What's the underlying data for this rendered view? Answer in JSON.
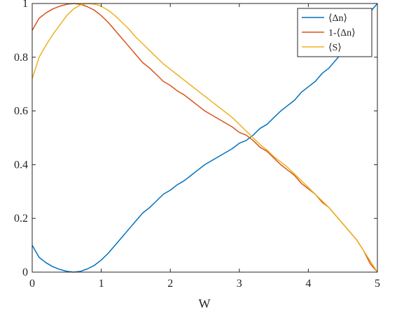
{
  "chart_data": {
    "type": "line",
    "title": "",
    "xlabel": "W",
    "ylabel": "",
    "xlim": [
      0,
      5
    ],
    "ylim": [
      0,
      1
    ],
    "x_ticks": [
      0,
      1,
      2,
      3,
      4,
      5
    ],
    "x_tick_labels": [
      "0",
      "1",
      "2",
      "3",
      "4",
      "5"
    ],
    "y_ticks": [
      0,
      0.2,
      0.4,
      0.6,
      0.8,
      1
    ],
    "y_tick_labels": [
      "0",
      "0.2",
      "0.4",
      "0.6",
      "0.8",
      "1"
    ],
    "grid": false,
    "legend_position": "top-right",
    "x": [
      0,
      0.1,
      0.2,
      0.3,
      0.4,
      0.5,
      0.6,
      0.7,
      0.8,
      0.9,
      1.0,
      1.1,
      1.2,
      1.3,
      1.4,
      1.5,
      1.6,
      1.7,
      1.8,
      1.9,
      2.0,
      2.1,
      2.2,
      2.3,
      2.4,
      2.5,
      2.6,
      2.7,
      2.8,
      2.9,
      3.0,
      3.1,
      3.2,
      3.3,
      3.4,
      3.5,
      3.6,
      3.7,
      3.8,
      3.9,
      4.0,
      4.1,
      4.2,
      4.3,
      4.4,
      4.5,
      4.6,
      4.7,
      4.8,
      4.9,
      5.0
    ],
    "series": [
      {
        "name": "⟨Δn⟩",
        "color": "#0072BD",
        "values": [
          0.1,
          0.055,
          0.035,
          0.02,
          0.01,
          0.003,
          0.0,
          0.003,
          0.012,
          0.025,
          0.045,
          0.07,
          0.1,
          0.13,
          0.16,
          0.19,
          0.22,
          0.24,
          0.265,
          0.29,
          0.305,
          0.325,
          0.34,
          0.36,
          0.38,
          0.4,
          0.415,
          0.43,
          0.445,
          0.46,
          0.48,
          0.49,
          0.51,
          0.535,
          0.55,
          0.575,
          0.6,
          0.62,
          0.64,
          0.67,
          0.69,
          0.71,
          0.74,
          0.76,
          0.79,
          0.82,
          0.85,
          0.88,
          0.92,
          0.97,
          1.0
        ]
      },
      {
        "name": "1-⟨Δn⟩",
        "color": "#D95319",
        "values": [
          0.9,
          0.945,
          0.965,
          0.98,
          0.99,
          0.997,
          1.0,
          0.997,
          0.988,
          0.975,
          0.955,
          0.93,
          0.9,
          0.87,
          0.84,
          0.81,
          0.78,
          0.76,
          0.735,
          0.71,
          0.695,
          0.675,
          0.66,
          0.64,
          0.62,
          0.6,
          0.585,
          0.57,
          0.555,
          0.54,
          0.52,
          0.51,
          0.49,
          0.465,
          0.45,
          0.425,
          0.4,
          0.38,
          0.36,
          0.33,
          0.31,
          0.29,
          0.26,
          0.24,
          0.21,
          0.18,
          0.15,
          0.12,
          0.08,
          0.03,
          0.0
        ]
      },
      {
        "name": "⟨S⟩",
        "color": "#EDB120",
        "values": [
          0.72,
          0.8,
          0.845,
          0.885,
          0.92,
          0.955,
          0.98,
          0.995,
          1.0,
          0.998,
          0.99,
          0.975,
          0.955,
          0.93,
          0.905,
          0.875,
          0.85,
          0.825,
          0.8,
          0.775,
          0.755,
          0.735,
          0.715,
          0.695,
          0.675,
          0.655,
          0.635,
          0.615,
          0.595,
          0.575,
          0.55,
          0.525,
          0.5,
          0.475,
          0.455,
          0.43,
          0.41,
          0.39,
          0.365,
          0.34,
          0.315,
          0.29,
          0.265,
          0.24,
          0.21,
          0.18,
          0.15,
          0.12,
          0.08,
          0.04,
          0.0
        ]
      }
    ]
  }
}
